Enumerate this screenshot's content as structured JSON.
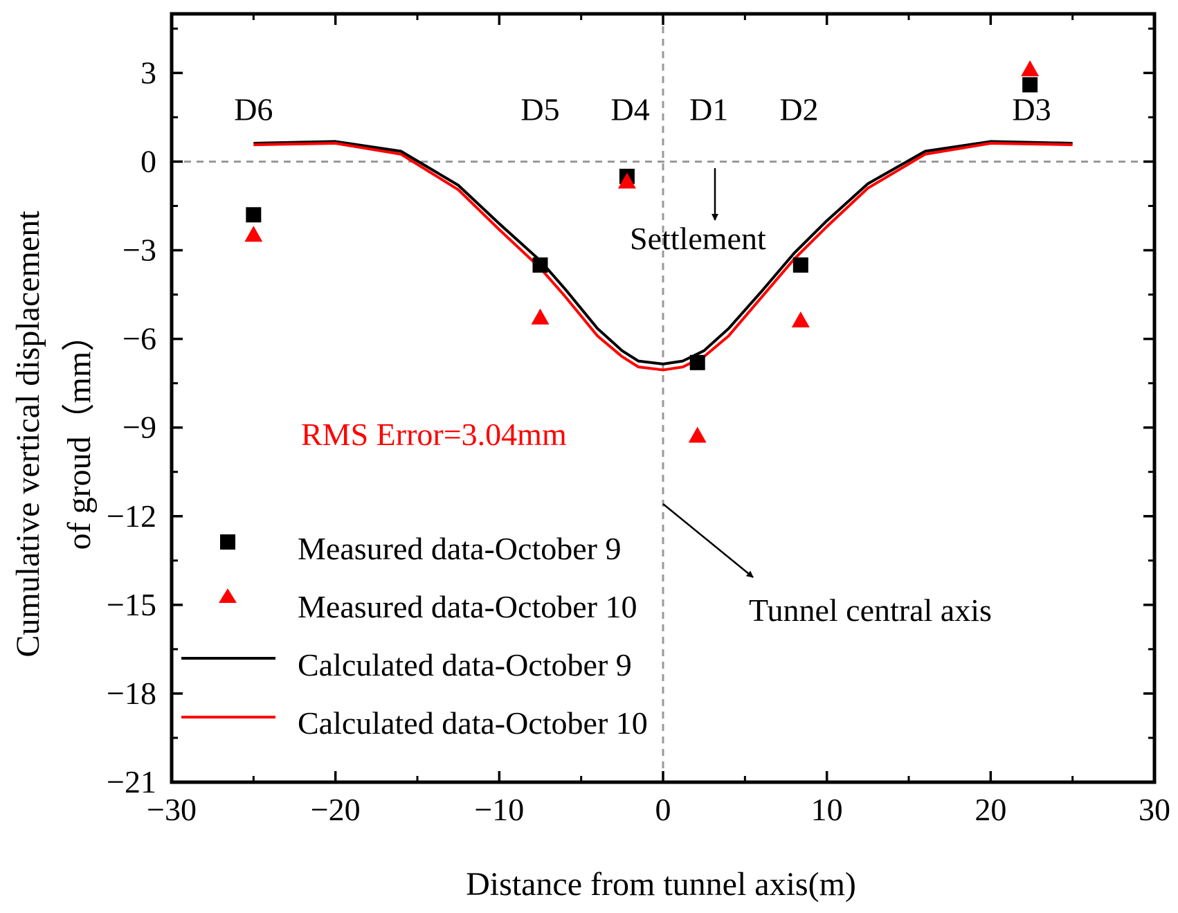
{
  "chart_data": {
    "type": "scatter",
    "xlabel": "Distance from tunnel axis(m)",
    "ylabel_line1": "Cumulative vertical displacement",
    "ylabel_line2": "of groud（mm）",
    "xlim": [
      -30,
      30
    ],
    "ylim": [
      -21,
      5
    ],
    "xticks": [
      -30,
      -20,
      -10,
      0,
      10,
      20,
      30
    ],
    "yticks": [
      3,
      0,
      -3,
      -6,
      -9,
      -12,
      -15,
      -18,
      -21
    ],
    "series": [
      {
        "name": "Measured data-October 9",
        "kind": "scatter",
        "marker": "square",
        "color": "#000000",
        "x": [
          -25,
          -7.5,
          -2.2,
          2.1,
          8.4,
          22.4
        ],
        "y": [
          -1.8,
          -3.5,
          -0.5,
          -6.8,
          -3.5,
          2.6
        ]
      },
      {
        "name": "Measured data-October 10",
        "kind": "scatter",
        "marker": "triangle",
        "color": "#ff0000",
        "x": [
          -25,
          -7.5,
          -2.2,
          2.1,
          8.4,
          22.4
        ],
        "y": [
          -2.5,
          -5.3,
          -0.7,
          -9.3,
          -5.4,
          3.1
        ]
      },
      {
        "name": "Calculated data-October 9",
        "kind": "line",
        "color": "#000000",
        "x": [
          -25,
          -20,
          -16,
          -12.5,
          -10,
          -7.5,
          -6,
          -4,
          -2.5,
          -1.5,
          0,
          1.2,
          2.5,
          4,
          6,
          8,
          10,
          12.5,
          16,
          20,
          25
        ],
        "y": [
          0.62,
          0.68,
          0.35,
          -0.8,
          -2.1,
          -3.35,
          -4.3,
          -5.65,
          -6.4,
          -6.75,
          -6.85,
          -6.75,
          -6.4,
          -5.65,
          -4.4,
          -3.1,
          -2.0,
          -0.75,
          0.35,
          0.68,
          0.62
        ]
      },
      {
        "name": "Calculated data-October 10",
        "kind": "line",
        "color": "#ff0000",
        "x": [
          -25,
          -20,
          -16,
          -12.5,
          -10,
          -7.5,
          -6,
          -4,
          -2.5,
          -1.5,
          0,
          1.2,
          2.5,
          4,
          6,
          8,
          10,
          12.5,
          16,
          20,
          25
        ],
        "y": [
          0.57,
          0.62,
          0.25,
          -0.95,
          -2.3,
          -3.6,
          -4.55,
          -5.9,
          -6.6,
          -6.95,
          -7.05,
          -6.95,
          -6.6,
          -5.9,
          -4.6,
          -3.3,
          -2.2,
          -0.9,
          0.25,
          0.62,
          0.57
        ]
      }
    ],
    "point_labels": [
      {
        "text": "D6",
        "x": -25
      },
      {
        "text": "D5",
        "x": -7.5
      },
      {
        "text": "D4",
        "x": -2
      },
      {
        "text": "D1",
        "x": 2.8
      },
      {
        "text": "D2",
        "x": 8.3
      },
      {
        "text": "D3",
        "x": 22.5
      }
    ],
    "point_labels_y": 1.4,
    "annotations": {
      "settlement": "Settlement",
      "rms": "RMS Error=3.04mm",
      "axis_label": "Tunnel central axis"
    },
    "legend_position": "lower-left"
  }
}
